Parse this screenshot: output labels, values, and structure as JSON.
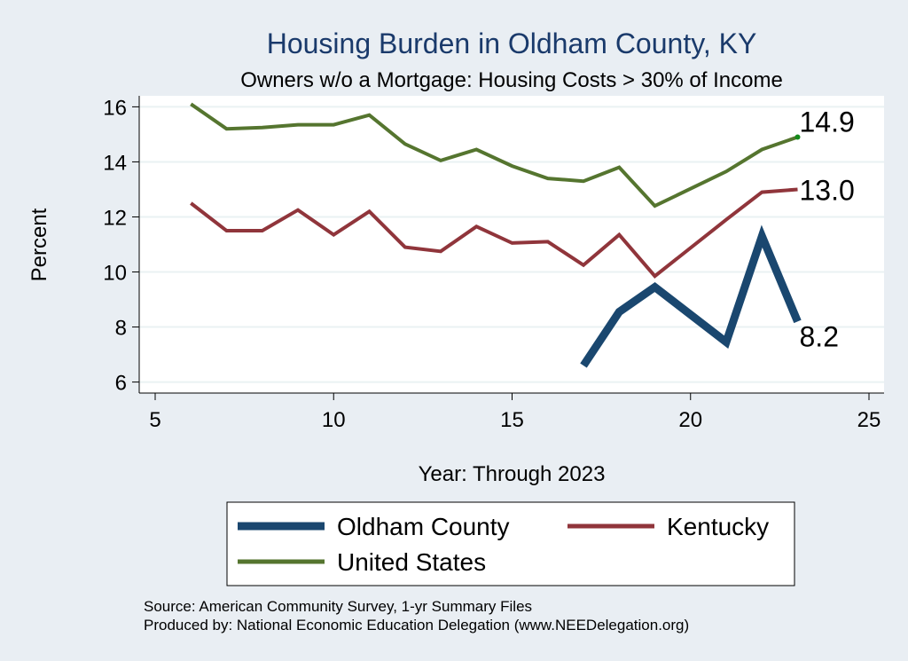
{
  "chart_data": {
    "type": "line",
    "title": "Housing Burden in Oldham County, KY",
    "subtitle": "Owners w/o a Mortgage: Housing Costs > 30% of Income",
    "xlabel": "Year: Through 2023",
    "ylabel": "Percent",
    "xlim": [
      5,
      25
    ],
    "ylim": [
      5.6,
      16.4
    ],
    "xticks": [
      5,
      10,
      15,
      20,
      25
    ],
    "yticks": [
      6,
      8,
      10,
      12,
      14,
      16
    ],
    "grid": true,
    "legend_position": "bottom",
    "series": [
      {
        "name": "Oldham County",
        "color": "#1a476f",
        "x": [
          17,
          18,
          19,
          21,
          22,
          23
        ],
        "values": [
          6.6,
          8.55,
          9.45,
          7.45,
          11.3,
          8.2
        ],
        "end_label": "8.2"
      },
      {
        "name": "Kentucky",
        "color": "#90353b",
        "x": [
          6,
          7,
          8,
          9,
          10,
          11,
          12,
          13,
          14,
          15,
          16,
          17,
          18,
          19,
          21,
          22,
          23
        ],
        "values": [
          12.5,
          11.5,
          11.5,
          12.25,
          11.35,
          12.2,
          10.9,
          10.75,
          11.65,
          11.05,
          11.1,
          10.25,
          11.35,
          9.85,
          11.9,
          12.9,
          13.0
        ],
        "end_label": "13.0"
      },
      {
        "name": "United States",
        "color": "#55752f",
        "x": [
          6,
          7,
          8,
          9,
          10,
          11,
          12,
          13,
          14,
          15,
          16,
          17,
          18,
          19,
          21,
          22,
          23
        ],
        "values": [
          16.1,
          15.2,
          15.25,
          15.35,
          15.35,
          15.7,
          14.65,
          14.05,
          14.45,
          13.85,
          13.4,
          13.3,
          13.8,
          12.4,
          13.65,
          14.45,
          14.9
        ],
        "end_label": "14.9"
      }
    ]
  },
  "source_note": "Source: American Community Survey, 1-yr Summary Files",
  "producer_note": "Produced by: National Economic Education Delegation (www.NEEDelegation.org)"
}
